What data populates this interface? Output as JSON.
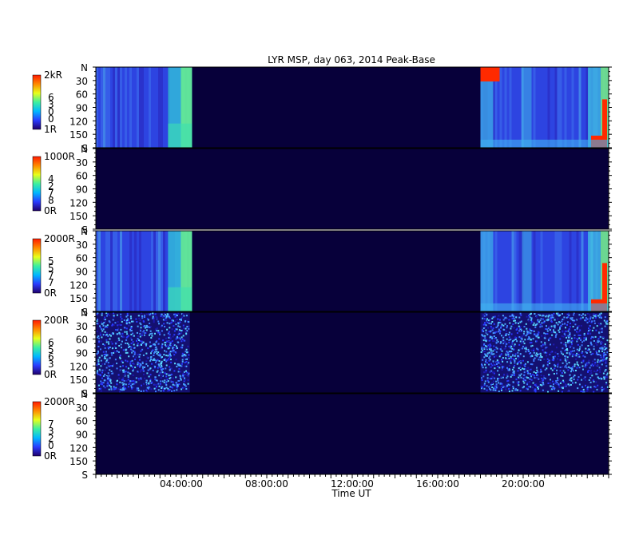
{
  "chart_data": {
    "type": "heatmap",
    "title": "LYR MSP, day 063, 2014 Peak-Base",
    "xlabel": "Time UT",
    "x_range_hours": [
      0,
      24
    ],
    "x_ticks": [
      {
        "hour": 4,
        "label": "04:00:00"
      },
      {
        "hour": 8,
        "label": "08:00:00"
      },
      {
        "hour": 12,
        "label": "12:00:00"
      },
      {
        "hour": 16,
        "label": "16:00:00"
      },
      {
        "hour": 20,
        "label": "20:00:00"
      }
    ],
    "y_range_deg": [
      0,
      180
    ],
    "y_ticks": [
      {
        "deg": 0,
        "label": "N"
      },
      {
        "deg": 30,
        "label": "30"
      },
      {
        "deg": 60,
        "label": "60"
      },
      {
        "deg": 90,
        "label": "90"
      },
      {
        "deg": 120,
        "label": "120"
      },
      {
        "deg": 150,
        "label": "150"
      },
      {
        "deg": 180,
        "label": "S"
      }
    ],
    "colormap": [
      "#20006a",
      "#2a3bff",
      "#00b8ff",
      "#3cf0a0",
      "#e8ff1a",
      "#ff8a00",
      "#ff1a00"
    ],
    "background_color": "#07003a",
    "panels": [
      {
        "colorbar_max": "2kR",
        "colorbar_min": "1R",
        "channel_digits": [
          "6",
          "3",
          "0",
          "0"
        ],
        "data_windows_hours": [
          [
            0,
            4.5
          ],
          [
            18,
            24
          ]
        ],
        "style": "auroral"
      },
      {
        "colorbar_max": "1000R",
        "colorbar_min": "0R",
        "channel_digits": [
          "4",
          "2",
          "7",
          "8"
        ],
        "data_windows_hours": [],
        "style": "empty"
      },
      {
        "colorbar_max": "2000R",
        "colorbar_min": "0R",
        "channel_digits": [
          "5",
          "5",
          "7",
          "7"
        ],
        "data_windows_hours": [
          [
            0,
            4.5
          ],
          [
            18,
            24
          ]
        ],
        "style": "auroral"
      },
      {
        "colorbar_max": "200R",
        "colorbar_min": "0R",
        "channel_digits": [
          "6",
          "5",
          "6",
          "3"
        ],
        "data_windows_hours": [
          [
            0,
            4.4
          ],
          [
            18,
            24
          ]
        ],
        "style": "noise"
      },
      {
        "colorbar_max": "2000R",
        "colorbar_min": "0R",
        "channel_digits": [
          "7",
          "3",
          "2",
          "0"
        ],
        "data_windows_hours": [],
        "style": "empty"
      }
    ]
  }
}
